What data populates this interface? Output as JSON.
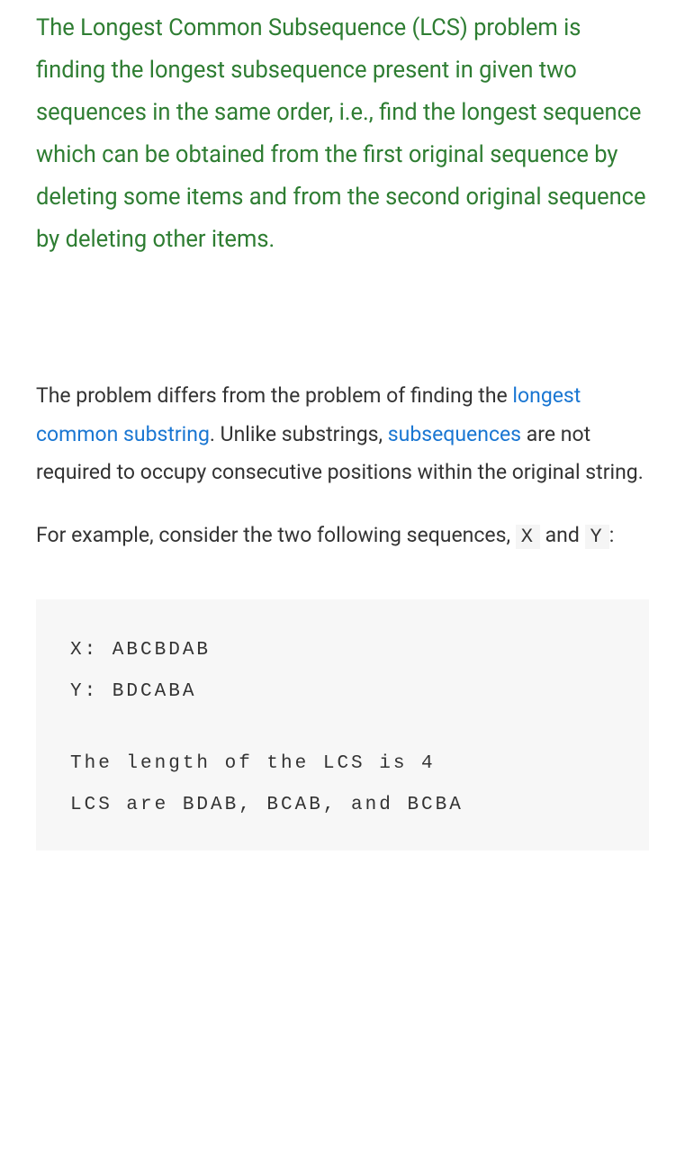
{
  "intro": {
    "text": "The Longest Common Subsequence (LCS) problem is finding the longest subsequence present in given two sequences in the same order, i.e., find the longest sequence which can be obtained from the first original sequence by deleting some items and from the second original sequence by deleting other items.",
    "color": "#2e7d32",
    "fontsize": 25.5,
    "line_height": 1.84
  },
  "para1": {
    "prefix": "The problem differs from the problem of finding the ",
    "link1_text": "longest common substring",
    "mid1": ". Unlike substrings, ",
    "link2_text": "subsequences",
    "suffix": " are not required to occupy consecutive positions within the original string.",
    "link_color": "#1976d2",
    "text_color": "#333333",
    "fontsize": 23
  },
  "para2": {
    "prefix": "For example, consider the two following sequences, ",
    "code1": "X",
    "mid": " and ",
    "code2": "Y",
    "suffix": ":",
    "code_bg": "#f5f5f5"
  },
  "codeblock": {
    "background_color": "#f7f7f7",
    "font_family": "Courier New",
    "fontsize": 21,
    "letter_spacing": 3,
    "line1": "X: ABCBDAB",
    "line2": "Y: BDCABA",
    "line3": "The length of the LCS is 4",
    "line4": "LCS are BDAB, BCAB, and BCBA"
  }
}
